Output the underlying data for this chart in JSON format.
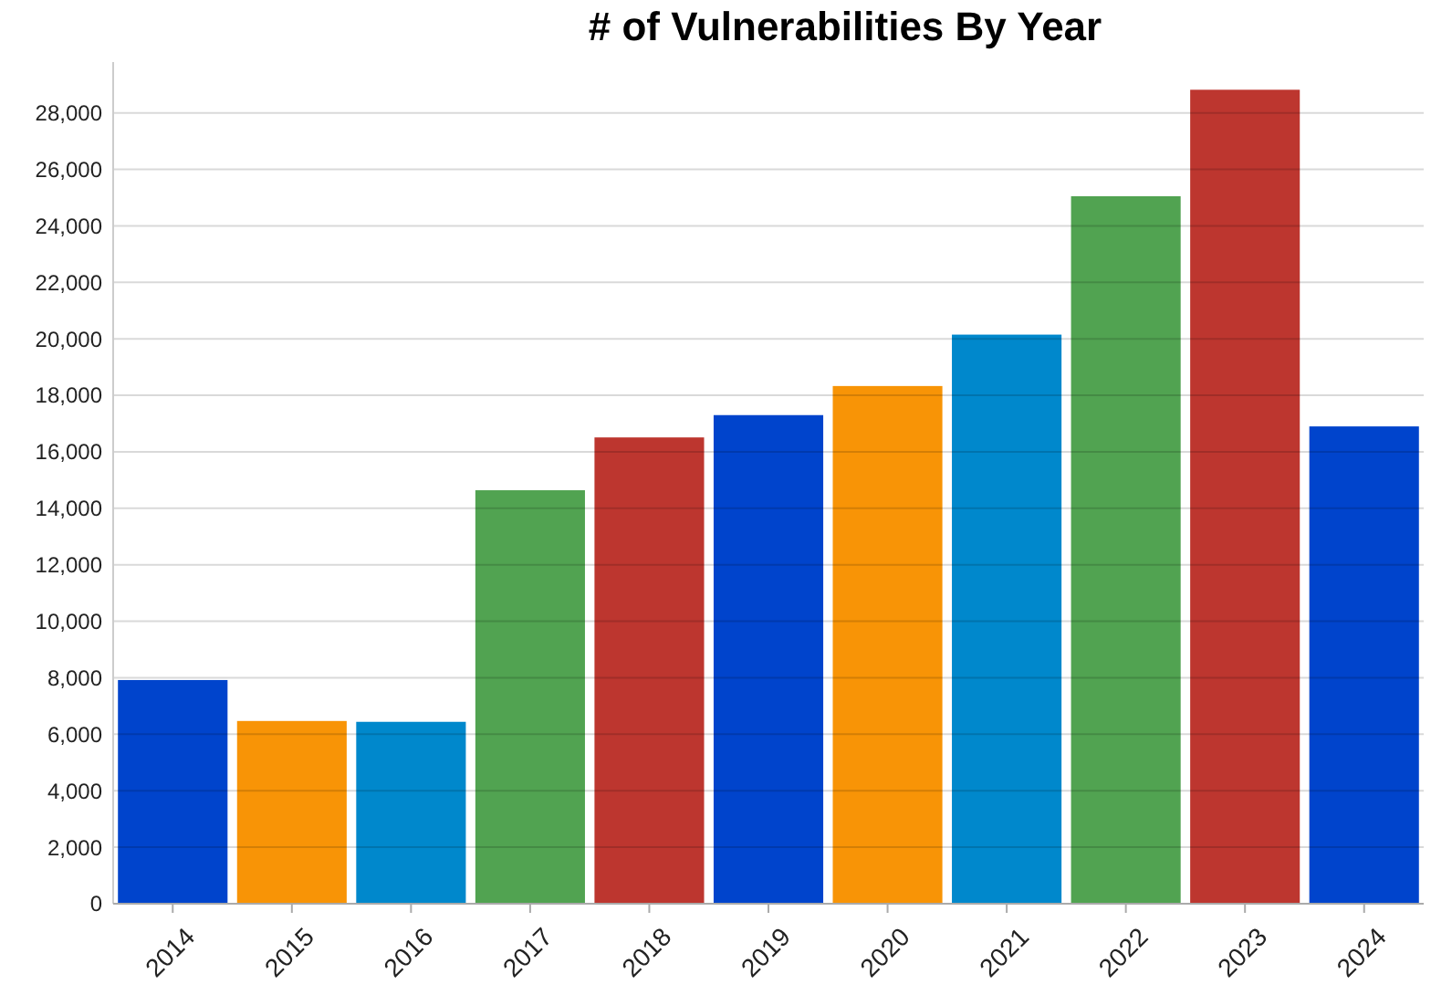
{
  "chart_data": {
    "type": "bar",
    "title": "# of Vulnerabilities By Year",
    "categories": [
      "2014",
      "2015",
      "2016",
      "2017",
      "2018",
      "2019",
      "2020",
      "2021",
      "2022",
      "2023",
      "2024"
    ],
    "values": [
      7920,
      6470,
      6440,
      14640,
      16510,
      17300,
      18330,
      20150,
      25050,
      28820,
      16900
    ],
    "colors": [
      "#0044cc",
      "#f89406",
      "#0088cc",
      "#51a351",
      "#bd362f",
      "#0044cc",
      "#f89406",
      "#0088cc",
      "#51a351",
      "#bd362f",
      "#0044cc"
    ],
    "ylim": [
      0,
      29800
    ],
    "yticks": [
      {
        "value": 0,
        "label": "0"
      },
      {
        "value": 2000,
        "label": "2,000"
      },
      {
        "value": 4000,
        "label": "4,000"
      },
      {
        "value": 6000,
        "label": "6,000"
      },
      {
        "value": 8000,
        "label": "8,000"
      },
      {
        "value": 10000,
        "label": "10,000"
      },
      {
        "value": 12000,
        "label": "12,000"
      },
      {
        "value": 14000,
        "label": "14,000"
      },
      {
        "value": 16000,
        "label": "16,000"
      },
      {
        "value": 18000,
        "label": "18,000"
      },
      {
        "value": 20000,
        "label": "20,000"
      },
      {
        "value": 22000,
        "label": "22,000"
      },
      {
        "value": 24000,
        "label": "24,000"
      },
      {
        "value": 26000,
        "label": "26,000"
      },
      {
        "value": 28000,
        "label": "28,000"
      }
    ],
    "grid": "y"
  }
}
